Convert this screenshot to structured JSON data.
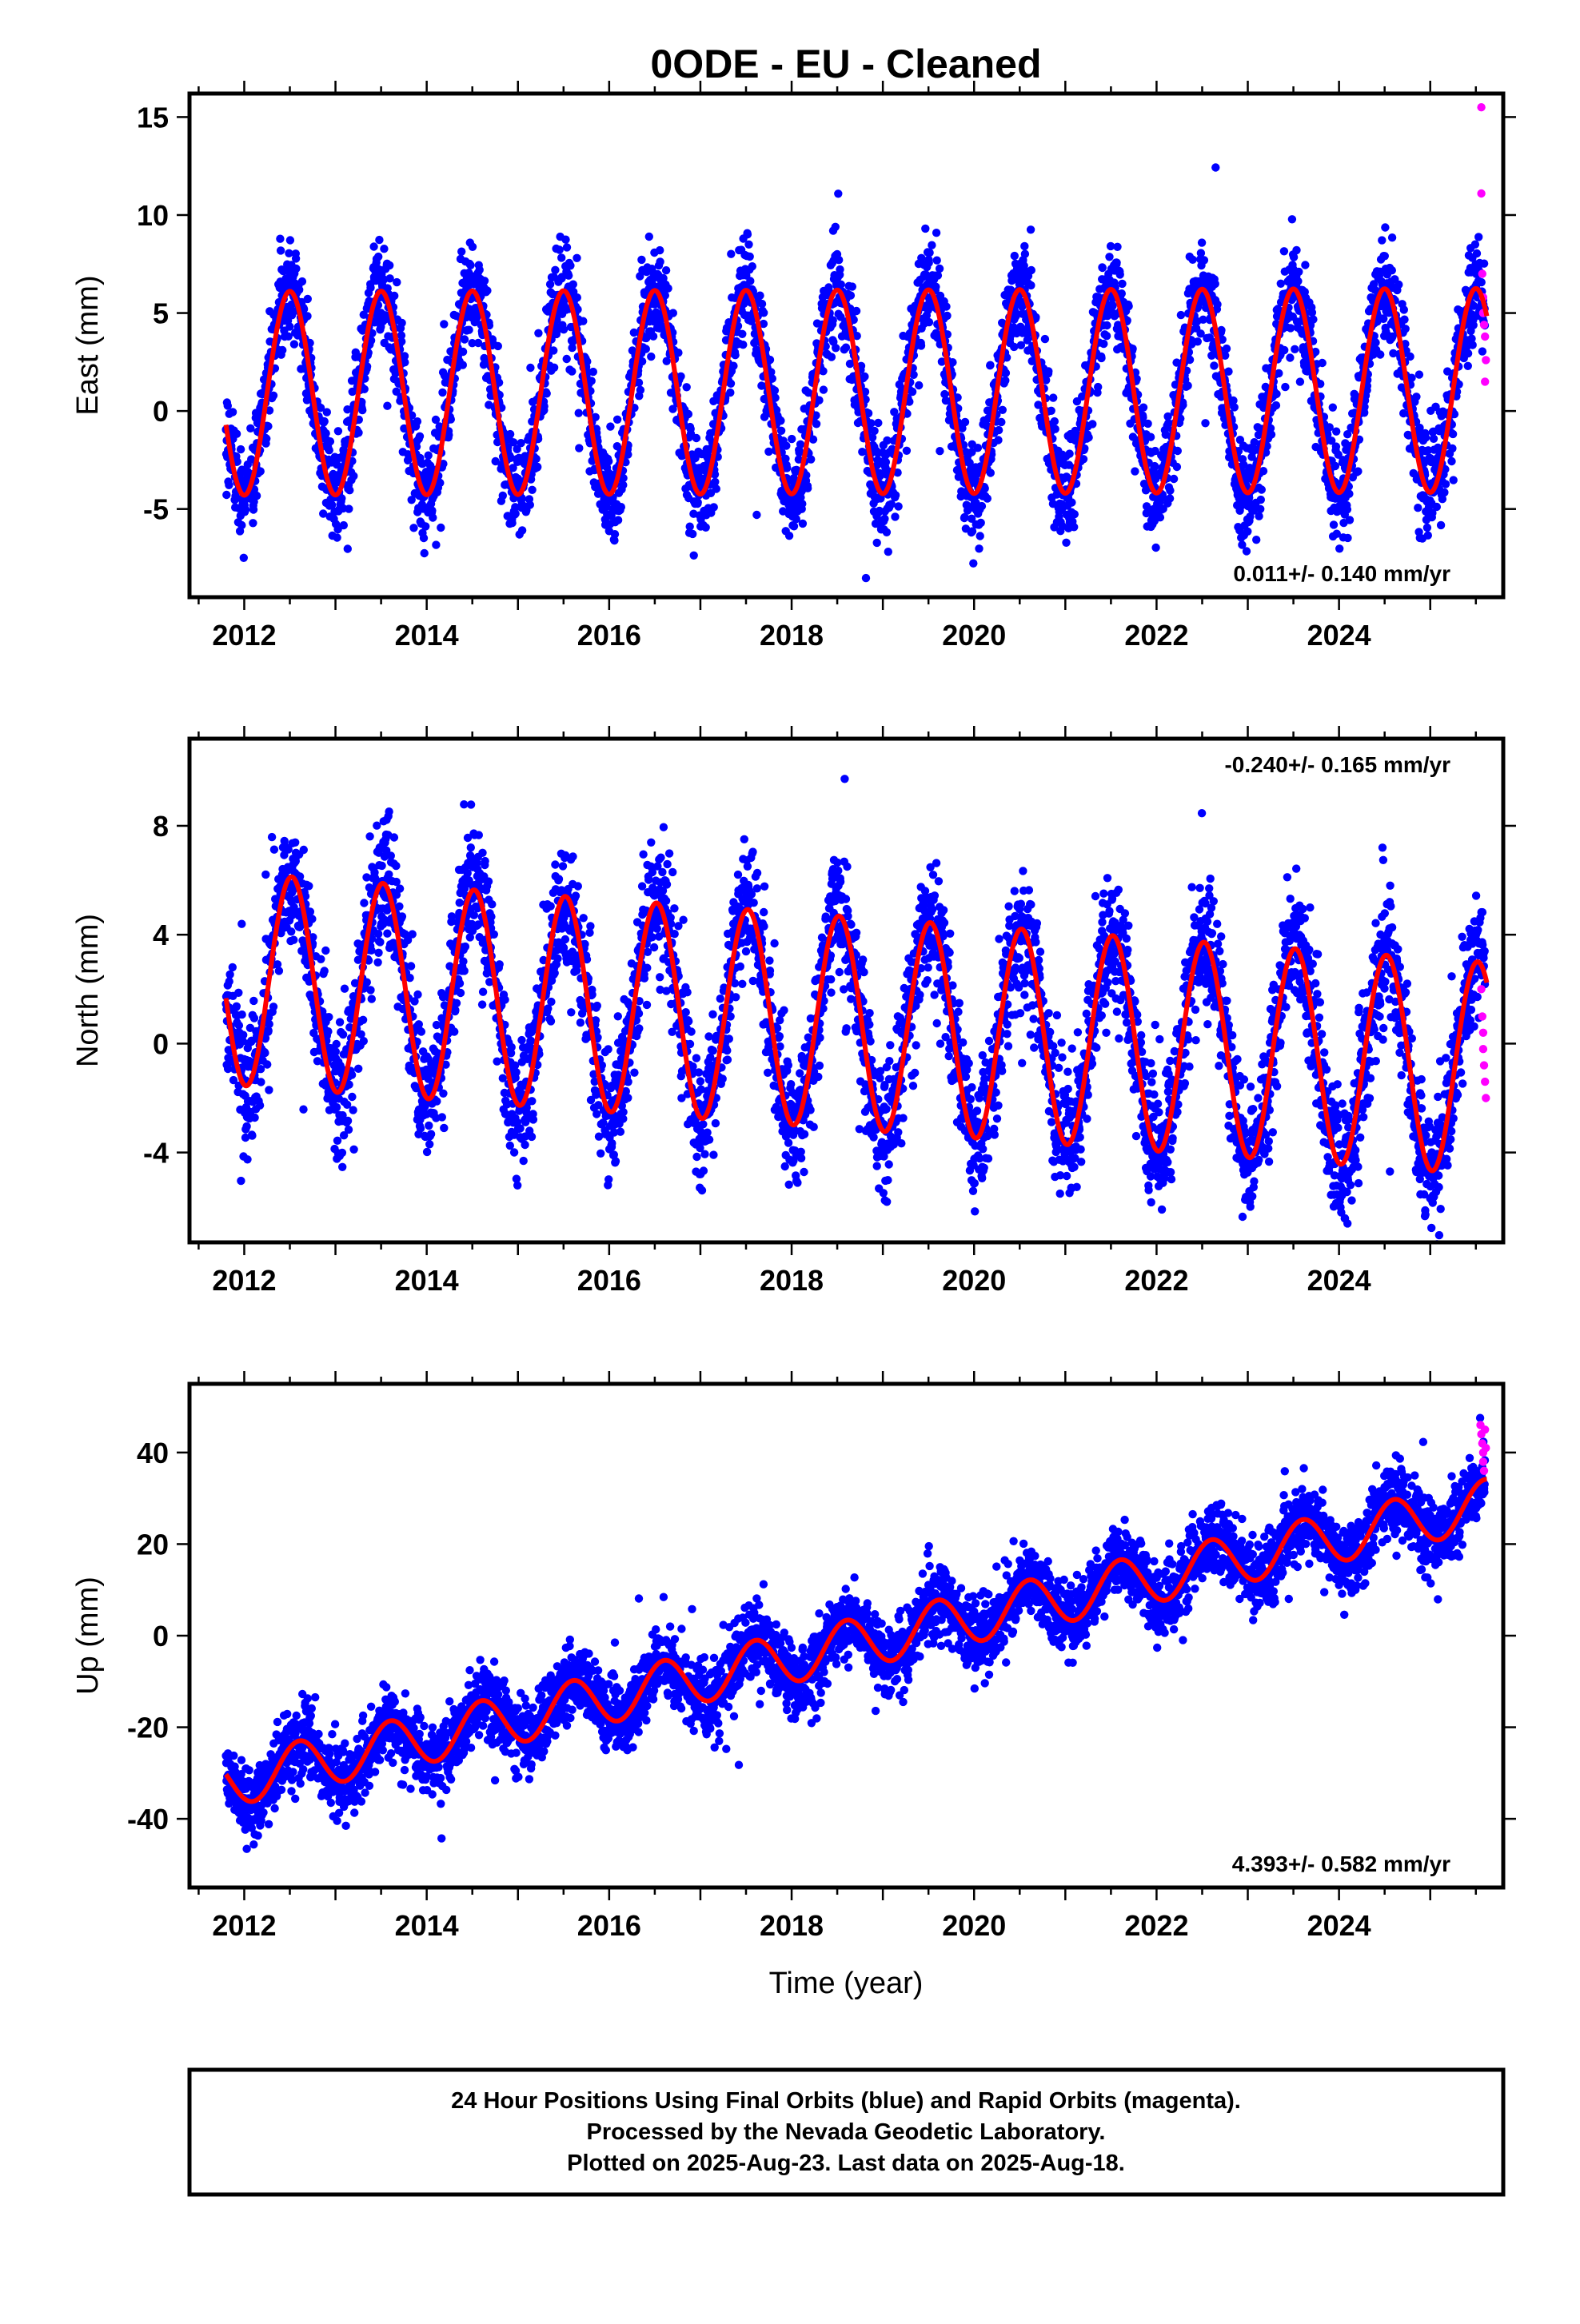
{
  "title": "0ODE  - EU - Cleaned",
  "colors": {
    "final_orbits": "#0000ff",
    "rapid_orbits": "#ff00ff",
    "model_fit": "#ff0000",
    "frame": "#000000",
    "background": "#ffffff"
  },
  "chart_data": [
    {
      "type": "scatter",
      "panel": "east",
      "ylabel": "East (mm)",
      "xlabel": "",
      "xlim": [
        2011.4,
        2025.8
      ],
      "ylim": [
        -9.5,
        16.2
      ],
      "x_ticks": [
        2012,
        2014,
        2016,
        2018,
        2020,
        2022,
        2024
      ],
      "x_tick_labels": [
        "2012",
        "2014",
        "2016",
        "2018",
        "2020",
        "2022",
        "2024"
      ],
      "y_ticks": [
        15,
        10,
        5,
        0,
        -5
      ],
      "y_tick_labels": [
        "15",
        "10",
        "5",
        "0",
        "-5"
      ],
      "trend_label": "0.011+/- 0.140 mm/yr",
      "trend_position": "bottom-right",
      "model": {
        "rate": 0.011,
        "amplitude": 5.2,
        "peak_phase": 0.5,
        "offset": 0.9,
        "residual_sd": 1.3
      },
      "data_start": 2011.8,
      "data_end": 2025.62,
      "rapid_points": [
        [
          2025.56,
          15.5
        ],
        [
          2025.56,
          11.1
        ],
        [
          2025.57,
          7.0
        ],
        [
          2025.58,
          5.8
        ],
        [
          2025.58,
          5.0
        ],
        [
          2025.59,
          4.4
        ],
        [
          2025.6,
          3.8
        ],
        [
          2025.61,
          2.6
        ],
        [
          2025.6,
          1.5
        ]
      ]
    },
    {
      "type": "scatter",
      "panel": "north",
      "ylabel": "North (mm)",
      "xlabel": "",
      "xlim": [
        2011.4,
        2025.8
      ],
      "ylim": [
        -7.3,
        11.2
      ],
      "x_ticks": [
        2012,
        2014,
        2016,
        2018,
        2020,
        2022,
        2024
      ],
      "x_tick_labels": [
        "2012",
        "2014",
        "2016",
        "2018",
        "2020",
        "2022",
        "2024"
      ],
      "y_ticks": [
        8,
        4,
        0,
        -4
      ],
      "y_tick_labels": [
        "8",
        "4",
        "0",
        "-4"
      ],
      "trend_label": "-0.240+/- 0.165 mm/yr",
      "trend_position": "top-right",
      "model": {
        "rate": -0.24,
        "amplitude": 3.9,
        "peak_phase": 0.52,
        "offset": 2.4,
        "residual_sd": 1.2
      },
      "data_start": 2011.8,
      "data_end": 2025.62,
      "rapid_points": [
        [
          2025.56,
          2.0
        ],
        [
          2025.57,
          1.0
        ],
        [
          2025.58,
          0.4
        ],
        [
          2025.58,
          -0.2
        ],
        [
          2025.59,
          -0.8
        ],
        [
          2025.6,
          -1.4
        ],
        [
          2025.61,
          -2.0
        ]
      ]
    },
    {
      "type": "scatter",
      "panel": "up",
      "ylabel": "Up (mm)",
      "xlabel": "Time (year)",
      "xlim": [
        2011.4,
        2025.8
      ],
      "ylim": [
        -55,
        55
      ],
      "x_ticks": [
        2012,
        2014,
        2016,
        2018,
        2020,
        2022,
        2024
      ],
      "x_tick_labels": [
        "2012",
        "2014",
        "2016",
        "2018",
        "2020",
        "2022",
        "2024"
      ],
      "y_ticks": [
        40,
        20,
        0,
        -20,
        -40
      ],
      "y_tick_labels": [
        "40",
        "20",
        "0",
        "-20",
        "-40"
      ],
      "trend_label": "4.393+/- 0.582 mm/yr",
      "trend_position": "bottom-right",
      "model": {
        "rate": 4.393,
        "amplitude": 5.5,
        "peak_phase": 0.6,
        "offset": -32.0,
        "residual_sd": 4.0
      },
      "data_start": 2011.8,
      "data_end": 2025.62,
      "rapid_points": [
        [
          2025.55,
          46
        ],
        [
          2025.56,
          44
        ],
        [
          2025.57,
          42
        ],
        [
          2025.58,
          40
        ],
        [
          2025.58,
          38
        ],
        [
          2025.59,
          36
        ],
        [
          2025.6,
          45
        ],
        [
          2025.61,
          41
        ]
      ]
    }
  ],
  "footer": {
    "line1": "24 Hour Positions Using Final Orbits (blue) and Rapid Orbits (magenta).",
    "line2": "Processed by the Nevada Geodetic Laboratory.",
    "line3": "Plotted on 2025-Aug-23. Last data on 2025-Aug-18."
  }
}
